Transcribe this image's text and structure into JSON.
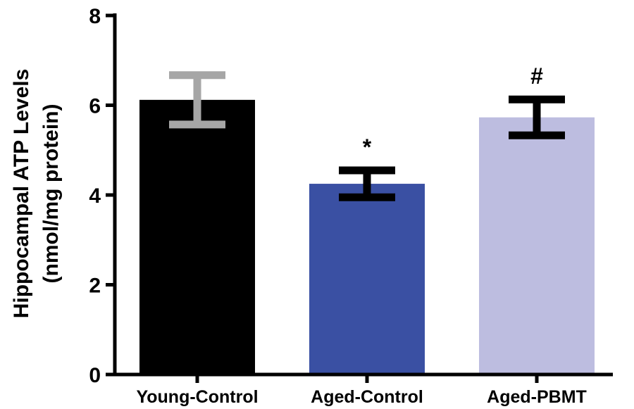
{
  "chart_data": {
    "type": "bar",
    "title": "",
    "xlabel": "",
    "ylabel_line1": "Hippocampal ATP Levels",
    "ylabel_line2": "(nmol/mg protein)",
    "ylim": [
      0,
      8
    ],
    "yticks": [
      0,
      2,
      4,
      6,
      8
    ],
    "ytick_labels": [
      "0",
      "2",
      "4",
      "6",
      "8"
    ],
    "grid": false,
    "legend": "none",
    "categories": [
      "Young-Control",
      "Aged-Control",
      "Aged-PBMT"
    ],
    "values": [
      6.12,
      4.25,
      5.73
    ],
    "error": [
      0.55,
      0.3,
      0.4
    ],
    "bar_colors": [
      "#000000",
      "#3a50a3",
      "#bdbde0"
    ],
    "error_colors": [
      "#a6a6a6",
      "#000000",
      "#000000"
    ],
    "annotations": [
      "",
      "*",
      "#"
    ]
  }
}
